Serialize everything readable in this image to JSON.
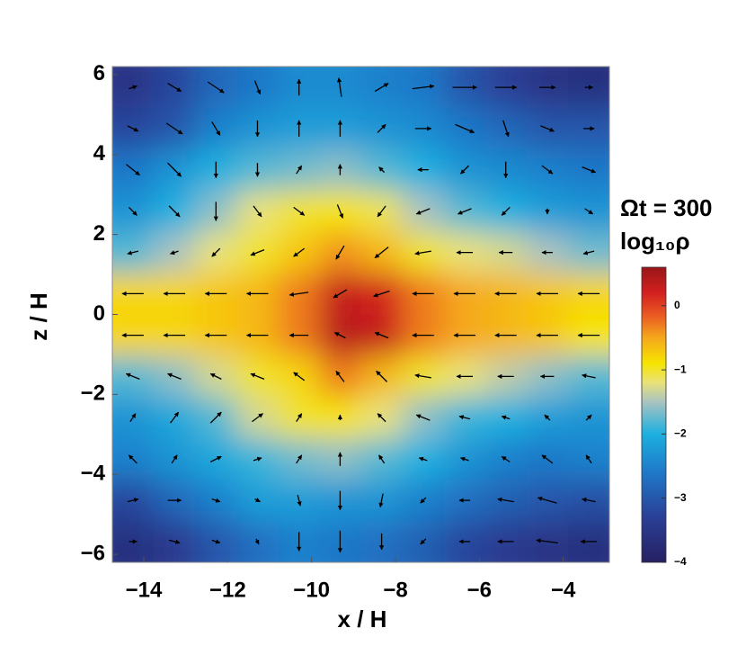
{
  "chart_data": {
    "type": "heatmap",
    "x_label": "x / H",
    "y_label": "z / H",
    "annotation": "Ωt = 300",
    "colorbar_label": "log₁₀ρ",
    "xlim": [
      -14.75,
      -2.9
    ],
    "ylim": [
      -6.2,
      6.2
    ],
    "xticks": [
      {
        "value": -14,
        "label": "−14"
      },
      {
        "value": -12,
        "label": "−12"
      },
      {
        "value": -10,
        "label": "−10"
      },
      {
        "value": -8,
        "label": "−8"
      },
      {
        "value": -6,
        "label": "−6"
      },
      {
        "value": -4,
        "label": "−4"
      }
    ],
    "yticks": [
      {
        "value": -6,
        "label": "−6"
      },
      {
        "value": -4,
        "label": "−4"
      },
      {
        "value": -2,
        "label": "−2"
      },
      0,
      2,
      4,
      6
    ],
    "clim": [
      -4,
      0.6
    ],
    "cticks": [
      {
        "value": -4,
        "label": "−4"
      },
      {
        "value": -3,
        "label": "−3"
      },
      {
        "value": -2,
        "label": "−2"
      },
      {
        "value": -1,
        "label": "−1"
      },
      0
    ],
    "colormap": [
      {
        "value": -4,
        "color": "#262062"
      },
      {
        "value": -3.3,
        "color": "#2a3f96"
      },
      {
        "value": -2.6,
        "color": "#1f78c8"
      },
      {
        "value": -2,
        "color": "#1cb0e0"
      },
      {
        "value": -1.5,
        "color": "#a9c3c0"
      },
      {
        "value": -1.2,
        "color": "#e8e27a"
      },
      {
        "value": -0.9,
        "color": "#f6e400"
      },
      {
        "value": -0.5,
        "color": "#f5a81c"
      },
      {
        "value": -0.15,
        "color": "#ea5a22"
      },
      {
        "value": 0.2,
        "color": "#d3201f"
      },
      {
        "value": 0.6,
        "color": "#9a1518"
      }
    ],
    "x": [
      -14.26,
      -13.27,
      -12.28,
      -11.29,
      -10.3,
      -9.32,
      -8.33,
      -7.34,
      -6.35,
      -5.37,
      -4.38,
      -3.39
    ],
    "y": [
      5.68,
      4.65,
      3.62,
      2.58,
      1.55,
      0.52,
      -0.52,
      -1.55,
      -2.58,
      -3.62,
      -4.65,
      -5.68
    ],
    "z": [
      [
        -3.5,
        -3.2,
        -2.8,
        -2.6,
        -2.4,
        -2.4,
        -2.5,
        -2.6,
        -3.0,
        -3.3,
        -3.5,
        -3.6
      ],
      [
        -3.2,
        -3.0,
        -2.5,
        -2.3,
        -2.2,
        -2.2,
        -2.3,
        -2.4,
        -2.6,
        -2.8,
        -3.0,
        -3.0
      ],
      [
        -2.6,
        -2.3,
        -2.0,
        -1.8,
        -1.7,
        -1.6,
        -1.8,
        -2.0,
        -2.3,
        -2.4,
        -2.5,
        -2.6
      ],
      [
        -2.3,
        -2.0,
        -1.6,
        -1.2,
        -1.0,
        -0.9,
        -1.1,
        -1.5,
        -1.8,
        -2.0,
        -2.2,
        -2.3
      ],
      [
        -1.8,
        -1.5,
        -1.2,
        -1.0,
        -0.7,
        -0.4,
        -0.6,
        -1.0,
        -1.2,
        -1.3,
        -1.5,
        -1.7
      ],
      [
        -0.8,
        -0.8,
        -0.7,
        -0.6,
        -0.3,
        0.3,
        0.2,
        -0.3,
        -0.5,
        -0.6,
        -0.7,
        -0.8
      ],
      [
        -0.8,
        -0.8,
        -0.7,
        -0.6,
        -0.3,
        0.4,
        0.3,
        -0.3,
        -0.5,
        -0.6,
        -0.7,
        -0.9
      ],
      [
        -1.8,
        -1.6,
        -1.3,
        -1.0,
        -0.8,
        -0.3,
        -0.6,
        -1.0,
        -1.2,
        -1.4,
        -1.6,
        -1.8
      ],
      [
        -2.3,
        -2.1,
        -1.8,
        -1.3,
        -1.0,
        -0.9,
        -1.2,
        -1.6,
        -1.9,
        -2.0,
        -2.2,
        -2.3
      ],
      [
        -2.5,
        -2.3,
        -2.1,
        -1.9,
        -1.7,
        -1.6,
        -1.8,
        -2.0,
        -2.3,
        -2.5,
        -2.6,
        -2.5
      ],
      [
        -3.2,
        -2.8,
        -2.5,
        -2.2,
        -2.2,
        -2.3,
        -2.3,
        -2.5,
        -2.7,
        -2.9,
        -3.0,
        -3.1
      ],
      [
        -3.6,
        -3.4,
        -3.0,
        -2.7,
        -2.5,
        -2.6,
        -2.7,
        -2.9,
        -3.2,
        -3.4,
        -3.5,
        -3.6
      ]
    ],
    "vectors": {
      "color": "#000000",
      "u": [
        [
          0.3,
          0.5,
          0.6,
          0.2,
          0,
          -0.1,
          0.5,
          0.8,
          0.9,
          0.8,
          0.6,
          0.3
        ],
        [
          0.4,
          0.6,
          0.3,
          0,
          0,
          0,
          0.3,
          0.6,
          0.7,
          0.2,
          0.5,
          0.4
        ],
        [
          0.5,
          0.5,
          0,
          0,
          0.2,
          0,
          -0.2,
          -0.4,
          -0.3,
          0,
          0.4,
          0.5
        ],
        [
          0.3,
          0.4,
          0,
          0.3,
          0.4,
          0.2,
          -0.3,
          -0.5,
          -0.5,
          -0.3,
          0,
          0.3
        ],
        [
          -0.4,
          -0.3,
          -0.3,
          -0.5,
          -0.4,
          -0.3,
          -0.5,
          -0.6,
          -0.6,
          -0.5,
          -0.4,
          -0.4
        ],
        [
          -0.8,
          -0.8,
          -0.8,
          -0.8,
          -0.7,
          -0.5,
          -0.6,
          -0.8,
          -0.8,
          -0.8,
          -0.8,
          -0.8
        ],
        [
          -0.8,
          -0.8,
          -0.8,
          -0.8,
          -0.7,
          -0.4,
          -0.5,
          -0.8,
          -0.8,
          -0.8,
          -0.8,
          -0.8
        ],
        [
          -0.5,
          -0.5,
          -0.4,
          -0.5,
          -0.4,
          -0.3,
          -0.4,
          -0.6,
          -0.6,
          -0.6,
          -0.5,
          -0.5
        ],
        [
          0.2,
          0.3,
          0.4,
          0.4,
          0.2,
          0,
          -0.3,
          -0.5,
          -0.4,
          -0.3,
          -0.2,
          0.2
        ],
        [
          -0.3,
          0.2,
          0.4,
          0.3,
          0.2,
          0,
          -0.2,
          -0.3,
          -0.3,
          -0.3,
          -0.4,
          -0.2
        ],
        [
          0.4,
          0.5,
          0.3,
          0.2,
          0.1,
          0,
          -0.1,
          -0.2,
          -0.4,
          -0.6,
          -0.7,
          -0.5
        ],
        [
          0.3,
          0.4,
          0.3,
          0.1,
          0,
          0,
          0,
          -0.2,
          -0.4,
          -0.6,
          -0.8,
          -0.6
        ]
      ],
      "v": [
        [
          0.1,
          -0.3,
          -0.4,
          -0.5,
          0.6,
          0.7,
          0.3,
          0.1,
          0,
          0,
          0,
          0
        ],
        [
          -0.2,
          -0.4,
          -0.5,
          -0.6,
          0.6,
          0.6,
          0.3,
          0,
          -0.3,
          -0.6,
          -0.2,
          0
        ],
        [
          -0.4,
          -0.5,
          -0.6,
          -0.5,
          0.3,
          0.4,
          0.2,
          0,
          -0.3,
          -0.6,
          -0.3,
          -0.2
        ],
        [
          -0.3,
          -0.4,
          -0.7,
          -0.4,
          -0.3,
          -0.5,
          -0.4,
          -0.2,
          -0.2,
          -0.3,
          -0.2,
          -0.2
        ],
        [
          -0.1,
          -0.1,
          -0.3,
          -0.2,
          -0.3,
          -0.5,
          -0.4,
          -0.1,
          0,
          0,
          0,
          -0.1
        ],
        [
          0,
          0,
          0,
          0,
          -0.1,
          -0.3,
          -0.2,
          0,
          0,
          0,
          0,
          0
        ],
        [
          0,
          0,
          0,
          0,
          0,
          0.2,
          0.2,
          0,
          0,
          0,
          0,
          0
        ],
        [
          0.2,
          0.2,
          0.2,
          0.2,
          0.3,
          0.4,
          0.4,
          0.1,
          0,
          0,
          0,
          0.1
        ],
        [
          0.3,
          0.4,
          0.4,
          0.3,
          0.3,
          0.2,
          0.3,
          0.2,
          0.1,
          0.1,
          0.2,
          0.2
        ],
        [
          0.3,
          0.3,
          0.2,
          0.1,
          0.3,
          0.5,
          0.3,
          0.1,
          0.1,
          0.2,
          0.3,
          0.3
        ],
        [
          0.1,
          0,
          -0.1,
          -0.1,
          -0.4,
          -0.7,
          -0.5,
          -0.2,
          0,
          0.1,
          0.2,
          0.1
        ],
        [
          0,
          -0.1,
          -0.1,
          -0.2,
          -0.7,
          -0.8,
          -0.6,
          -0.2,
          0,
          0,
          0.1,
          0
        ]
      ]
    }
  }
}
